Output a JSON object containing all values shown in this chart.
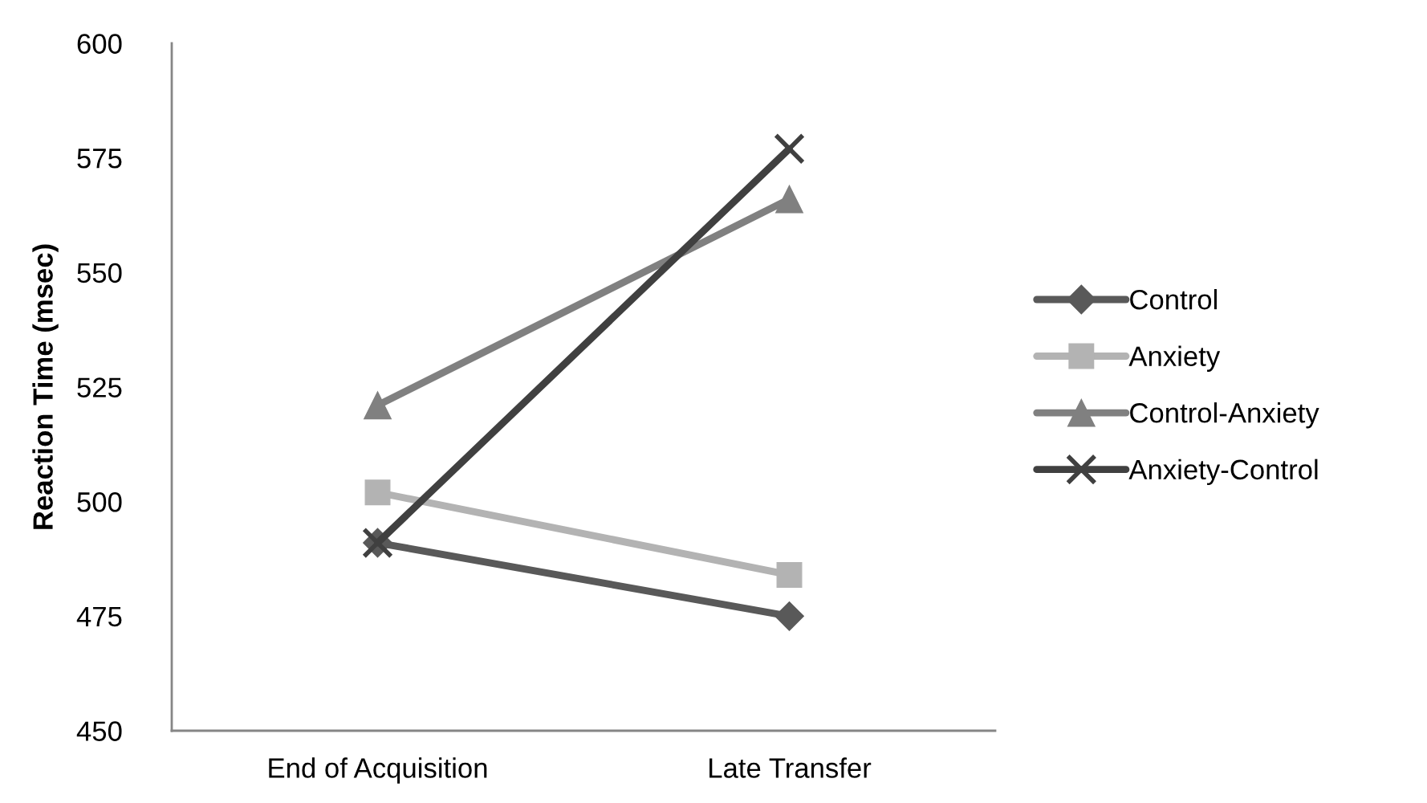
{
  "chart_data": {
    "type": "line",
    "ylabel": "Reaction Time (msec)",
    "categories": [
      "End of Acquisition",
      "Late Transfer"
    ],
    "ylim": [
      450,
      600
    ],
    "yticks": [
      450,
      475,
      500,
      525,
      550,
      575,
      600
    ],
    "grid": false,
    "legend": "right",
    "line_style": "solid",
    "series": [
      {
        "name": "Control",
        "color": "#595959",
        "marker": "diamond",
        "values": [
          491,
          475
        ]
      },
      {
        "name": "Anxiety",
        "color": "#b3b3b3",
        "marker": "square",
        "values": [
          502,
          484
        ]
      },
      {
        "name": "Control-Anxiety",
        "color": "#808080",
        "marker": "triangle",
        "values": [
          521,
          566
        ]
      },
      {
        "name": "Anxiety-Control",
        "color": "#404040",
        "marker": "cross",
        "values": [
          491,
          577
        ]
      }
    ]
  }
}
